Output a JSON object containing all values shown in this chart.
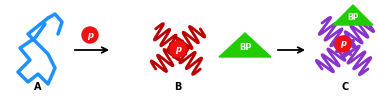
{
  "bg_color": "#ffffff",
  "arrow_color": "#000000",
  "blue_color": "#1E90FF",
  "red_color": "#BB0000",
  "red_circle_color": "#EE1111",
  "green_color": "#22CC00",
  "purple_color": "#8833CC",
  "label_A": "A",
  "label_B": "B",
  "label_C": "C",
  "label_P": "p",
  "label_BP": "BP",
  "figsize": [
    3.78,
    0.96
  ],
  "dpi": 100,
  "helix_lw": 2.0,
  "blue_lw": 2.5
}
